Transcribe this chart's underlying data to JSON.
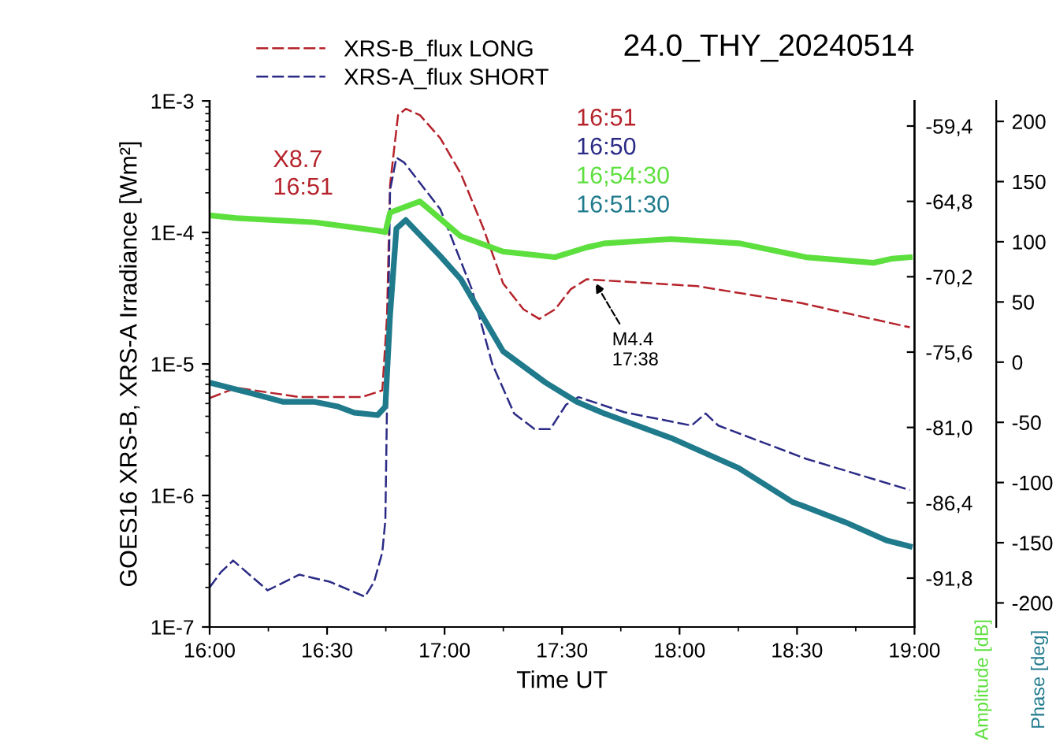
{
  "chart_data": {
    "type": "line",
    "title": "24.0_THY_20240514",
    "xlabel": "Time UT",
    "ylabel": "GOES16 XRS-B, XRS-A Irradiance [Wm²]",
    "y2label": "Amplitude [dB]",
    "y3label": "Phase [deg]",
    "log": "y",
    "legend": "top left",
    "grid": false,
    "xlim": [
      16,
      19
    ],
    "xticks": [
      {
        "value": 16,
        "label": "16:00"
      },
      {
        "value": 16.5,
        "label": "16:30"
      },
      {
        "value": 17,
        "label": "17:00"
      },
      {
        "value": 17.5,
        "label": "17:30"
      },
      {
        "value": 18,
        "label": "18:00"
      },
      {
        "value": 18.5,
        "label": "18:30"
      },
      {
        "value": 19,
        "label": "19:00"
      }
    ],
    "ylim": [
      1e-07,
      0.001
    ],
    "yticks": [
      {
        "value": 1e-07,
        "label": "1E-7"
      },
      {
        "value": 1e-06,
        "label": "1E-6"
      },
      {
        "value": 1e-05,
        "label": "1E-5"
      },
      {
        "value": 0.0001,
        "label": "1E-4"
      },
      {
        "value": 0.001,
        "label": "1E-3"
      }
    ],
    "y2lim": [
      -95.3,
      -57.6
    ],
    "y2ticks": [
      {
        "value": -59.4,
        "label": "-59,4"
      },
      {
        "value": -64.8,
        "label": "-64,8"
      },
      {
        "value": -70.2,
        "label": "-70,2"
      },
      {
        "value": -75.6,
        "label": "-75,6"
      },
      {
        "value": -81.0,
        "label": "-81,0"
      },
      {
        "value": -86.4,
        "label": "-86,4"
      },
      {
        "value": -91.8,
        "label": "-91,8"
      }
    ],
    "y3lim": [
      -220,
      217
    ],
    "y3ticks": [
      -200,
      -150,
      -100,
      -50,
      0,
      50,
      100,
      150,
      200
    ],
    "series": [
      {
        "name": "XRS-B_flux LONG",
        "color": "#b5232b",
        "line_style": "dashed",
        "x": [
          16.0,
          16.114,
          16.381,
          16.648,
          16.735,
          16.755,
          16.768,
          16.802,
          16.835,
          16.895,
          16.982,
          17.069,
          17.163,
          17.249,
          17.336,
          17.403,
          17.47,
          17.537,
          17.604,
          18.078,
          18.519,
          18.98
        ],
        "values": [
          5.5e-06,
          6.6e-06,
          5.6e-06,
          5.6e-06,
          6.3e-06,
          2.3e-05,
          0.00023,
          0.00078,
          0.00087,
          0.00078,
          0.00052,
          0.00028,
          0.00011,
          4.1e-05,
          2.6e-05,
          2.2e-05,
          2.6e-05,
          3.7e-05,
          4.4e-05,
          3.9e-05,
          2.9e-05,
          1.9e-05
        ]
      },
      {
        "name": "XRS-A_flux SHORT",
        "color": "#2b2b86",
        "line_style": "dashed",
        "x": [
          16.0,
          16.047,
          16.1,
          16.247,
          16.381,
          16.514,
          16.661,
          16.7,
          16.735,
          16.748,
          16.768,
          16.795,
          16.828,
          16.982,
          17.116,
          17.203,
          17.296,
          17.383,
          17.45,
          17.517,
          17.57,
          17.764,
          18.051,
          18.111,
          18.165,
          18.539,
          18.98
        ],
        "values": [
          2e-07,
          2.6e-07,
          3.2e-07,
          1.9e-07,
          2.5e-07,
          2.2e-07,
          1.7e-07,
          2.2e-07,
          3.7e-07,
          6.5e-07,
          0.00021,
          0.00037,
          0.00034,
          0.00015,
          3.7e-05,
          1e-05,
          4.2e-06,
          3.2e-06,
          3.2e-06,
          4.9e-06,
          5.6e-06,
          4.3e-06,
          3.4e-06,
          4.2e-06,
          3.4e-06,
          1.9e-06,
          1.1e-06
        ]
      },
      {
        "color": "#5ddf3e",
        "axis": "y2",
        "x": [
          16.0,
          16.114,
          16.448,
          16.715,
          16.748,
          16.768,
          16.895,
          17.069,
          17.249,
          17.47,
          17.604,
          17.684,
          17.964,
          18.252,
          18.539,
          18.826,
          18.906,
          18.98
        ],
        "values": [
          -65.8,
          -66.0,
          -66.3,
          -66.9,
          -67.0,
          -65.6,
          -64.8,
          -67.3,
          -68.4,
          -68.8,
          -68.1,
          -67.8,
          -67.5,
          -67.8,
          -68.8,
          -69.2,
          -68.9,
          -68.8
        ]
      },
      {
        "color": "#1f7a8c",
        "axis": "y3",
        "x": [
          16.0,
          16.18,
          16.314,
          16.448,
          16.548,
          16.615,
          16.715,
          16.748,
          16.768,
          16.795,
          16.835,
          16.982,
          17.069,
          17.249,
          17.43,
          17.563,
          17.684,
          17.964,
          18.252,
          18.479,
          18.706,
          18.88,
          18.98
        ],
        "values": [
          -17,
          -26,
          -33,
          -33,
          -37,
          -42,
          -44,
          -37,
          39,
          111,
          118,
          88,
          69,
          9,
          -17,
          -33,
          -43,
          -63,
          -88,
          -116,
          -133,
          -148,
          -153
        ]
      }
    ],
    "annotations": [
      "X8.7\n16:51",
      "16:51",
      "16:50",
      "16;54:30",
      "16:51:30",
      {
        "text": "M4.4\n17:38",
        "x": 17.633,
        "y": 4.4e-05
      }
    ]
  }
}
